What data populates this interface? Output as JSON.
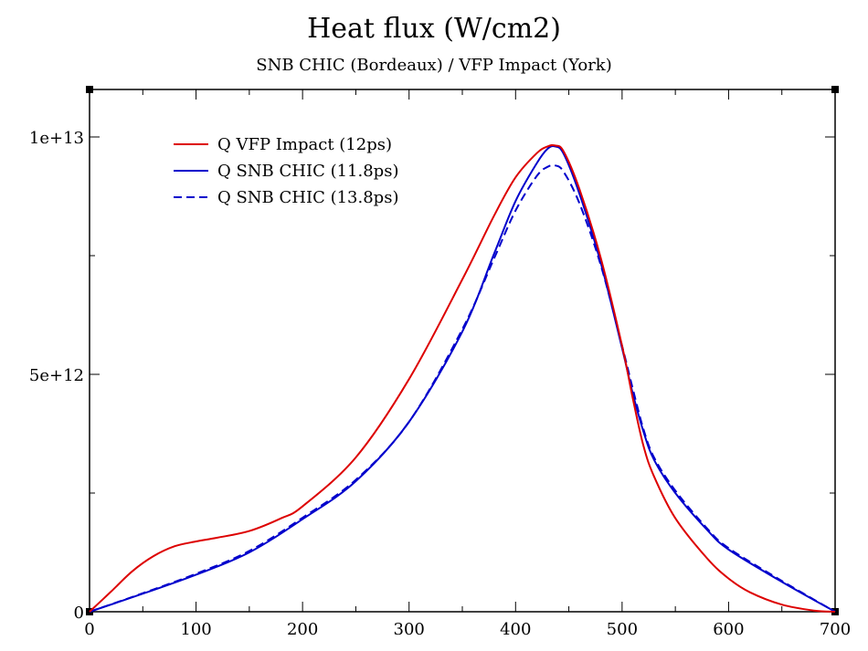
{
  "chart_data": {
    "type": "line",
    "title": "Heat flux (W/cm2)",
    "subtitle": "SNB CHIC (Bordeaux) / VFP Impact (York)",
    "xlabel": "",
    "ylabel": "",
    "xlim": [
      0,
      700
    ],
    "ylim": [
      0,
      11000000000000.0
    ],
    "x_ticks": [
      0,
      100,
      200,
      300,
      400,
      500,
      600,
      700
    ],
    "x_tick_labels": [
      "0",
      "100",
      "200",
      "300",
      "400",
      "500",
      "600",
      "700"
    ],
    "y_ticks": [
      0,
      5000000000000.0,
      10000000000000.0
    ],
    "y_tick_labels": [
      "0",
      "5e+12",
      "1e+13"
    ],
    "grid": false,
    "legend_position": "top-left",
    "series": [
      {
        "name": "Q VFP Impact (12ps)",
        "color": "#dd0000",
        "dash": "solid",
        "x": [
          0,
          20,
          40,
          60,
          80,
          100,
          120,
          150,
          180,
          200,
          250,
          300,
          350,
          380,
          400,
          420,
          430,
          437,
          445,
          460,
          480,
          500,
          510,
          520,
          530,
          550,
          580,
          600,
          620,
          650,
          680,
          700
        ],
        "y": [
          0,
          420000000000.0,
          850000000000.0,
          1170000000000.0,
          1380000000000.0,
          1480000000000.0,
          1560000000000.0,
          1700000000000.0,
          1970000000000.0,
          2220000000000.0,
          3250000000000.0,
          4900000000000.0,
          7000000000000.0,
          8350000000000.0,
          9150000000000.0,
          9660000000000.0,
          9800000000000.0,
          9820000000000.0,
          9700000000000.0,
          8900000000000.0,
          7450000000000.0,
          5600000000000.0,
          4500000000000.0,
          3500000000000.0,
          2850000000000.0,
          1970000000000.0,
          1120000000000.0,
          700000000000.0,
          410000000000.0,
          150000000000.0,
          25000000000.0,
          0
        ]
      },
      {
        "name": "Q SNB CHIC (11.8ps)",
        "color": "#0000cc",
        "dash": "solid",
        "x": [
          0,
          50,
          100,
          150,
          200,
          250,
          300,
          350,
          380,
          400,
          420,
          430,
          437,
          445,
          460,
          480,
          500,
          510,
          520,
          530,
          550,
          580,
          600,
          650,
          700
        ],
        "y": [
          0,
          380000000000.0,
          780000000000.0,
          1250000000000.0,
          1950000000000.0,
          2750000000000.0,
          4000000000000.0,
          5900000000000.0,
          7550000000000.0,
          8650000000000.0,
          9450000000000.0,
          9750000000000.0,
          9800000000000.0,
          9650000000000.0,
          8800000000000.0,
          7350000000000.0,
          5550000000000.0,
          4600000000000.0,
          3800000000000.0,
          3200000000000.0,
          2500000000000.0,
          1720000000000.0,
          1310000000000.0,
          630000000000.0,
          0
        ]
      },
      {
        "name": "Q SNB CHIC (13.8ps)",
        "color": "#0000cc",
        "dash": "dashed",
        "x": [
          0,
          50,
          100,
          150,
          200,
          250,
          300,
          350,
          380,
          400,
          420,
          430,
          437,
          445,
          460,
          480,
          500,
          510,
          520,
          530,
          550,
          580,
          600,
          650,
          700
        ],
        "y": [
          0,
          390000000000.0,
          800000000000.0,
          1280000000000.0,
          1980000000000.0,
          2780000000000.0,
          4000000000000.0,
          5950000000000.0,
          7450000000000.0,
          8450000000000.0,
          9180000000000.0,
          9370000000000.0,
          9400000000000.0,
          9270000000000.0,
          8600000000000.0,
          7300000000000.0,
          5600000000000.0,
          4700000000000.0,
          3850000000000.0,
          3250000000000.0,
          2550000000000.0,
          1750000000000.0,
          1340000000000.0,
          650000000000.0,
          0
        ]
      }
    ]
  }
}
